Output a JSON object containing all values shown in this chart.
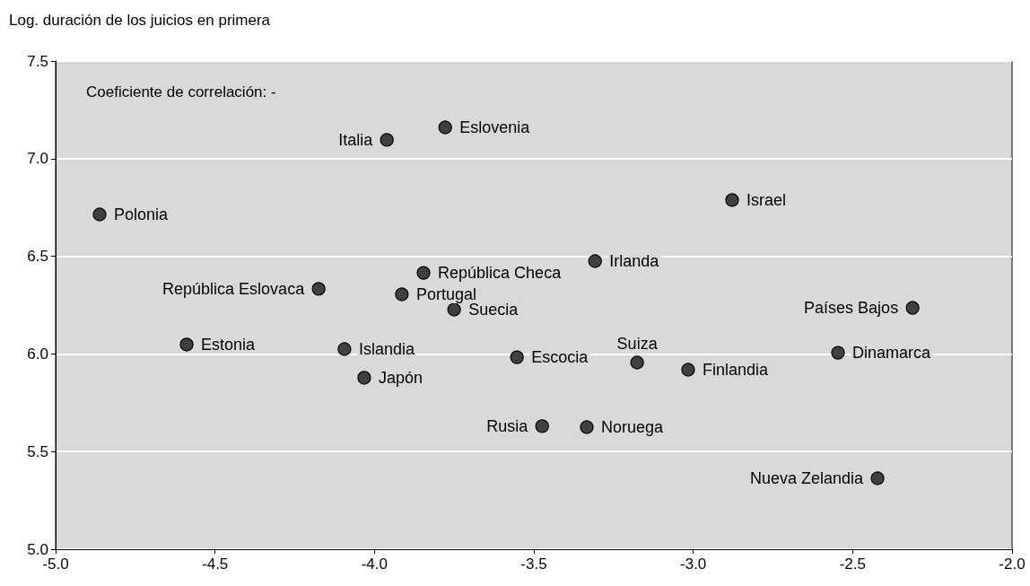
{
  "chart_data": {
    "type": "scatter",
    "ylabel": "Log. duración de los juicios en primera",
    "x": [
      -4.862,
      -3.961,
      -3.778,
      -2.878,
      -3.308,
      -3.846,
      -4.175,
      -3.914,
      -3.75,
      -2.312,
      -4.589,
      -4.094,
      -4.032,
      -3.553,
      -3.176,
      -3.016,
      -2.546,
      -3.474,
      -3.334,
      -2.422
    ],
    "values": [
      6.714,
      7.096,
      7.16,
      6.788,
      6.475,
      6.415,
      6.333,
      6.305,
      6.227,
      6.236,
      6.048,
      6.025,
      5.878,
      5.983,
      5.956,
      5.919,
      6.006,
      5.63,
      5.625,
      5.363
    ],
    "color": "#404040",
    "marker": "circle",
    "xlim": [
      -5.0,
      -2.0
    ],
    "xticks": [
      {
        "value": -5,
        "label": "-5.0"
      },
      {
        "value": -4.5,
        "label": "-4.5"
      },
      {
        "value": -4,
        "label": "-4.0"
      },
      {
        "value": -3.5,
        "label": "-3.5"
      },
      {
        "value": -3,
        "label": "-3.0"
      },
      {
        "value": -2.5,
        "label": "-2.5"
      },
      {
        "value": -2,
        "label": "-2.0"
      }
    ],
    "ylim": [
      5.0,
      7.5
    ],
    "yticks": [
      {
        "value": 5,
        "label": "5.0"
      },
      {
        "value": 5.5,
        "label": "5.5"
      },
      {
        "value": 6,
        "label": "6.0"
      },
      {
        "value": 6.5,
        "label": "6.5"
      },
      {
        "value": 7,
        "label": "7.0"
      },
      {
        "value": 7.5,
        "label": "7.5"
      }
    ],
    "grid": "y",
    "annotations": [
      "Coeficiente de correlación: -",
      {
        "text": "Polonia",
        "x": -4.862,
        "y": 6.714
      },
      {
        "text": "Italia",
        "x": -3.961,
        "y": 7.096
      },
      {
        "text": "Eslovenia",
        "x": -3.778,
        "y": 7.16
      },
      {
        "text": "Israel",
        "x": -2.878,
        "y": 6.788
      },
      {
        "text": "Irlanda",
        "x": -3.308,
        "y": 6.475
      },
      {
        "text": "República Checa",
        "x": -3.846,
        "y": 6.415
      },
      {
        "text": "República Eslovaca",
        "x": -4.175,
        "y": 6.333
      },
      {
        "text": "Portugal",
        "x": -3.914,
        "y": 6.305
      },
      {
        "text": "Suecia",
        "x": -3.75,
        "y": 6.227
      },
      {
        "text": "Países Bajos",
        "x": -2.312,
        "y": 6.236
      },
      {
        "text": "Estonia",
        "x": -4.589,
        "y": 6.048
      },
      {
        "text": "Islandia",
        "x": -4.094,
        "y": 6.025
      },
      {
        "text": "Japón",
        "x": -4.032,
        "y": 5.878
      },
      {
        "text": "Escocia",
        "x": -3.553,
        "y": 5.983
      },
      {
        "text": "Suiza",
        "x": -3.176,
        "y": 5.956
      },
      {
        "text": "Finlandia",
        "x": -3.016,
        "y": 5.919
      },
      {
        "text": "Dinamarca",
        "x": -2.546,
        "y": 6.006
      },
      {
        "text": "Rusia",
        "x": -3.474,
        "y": 5.63
      },
      {
        "text": "Noruega",
        "x": -3.334,
        "y": 5.625
      },
      {
        "text": "Nueva Zelandia",
        "x": -2.422,
        "y": 5.363
      }
    ]
  }
}
